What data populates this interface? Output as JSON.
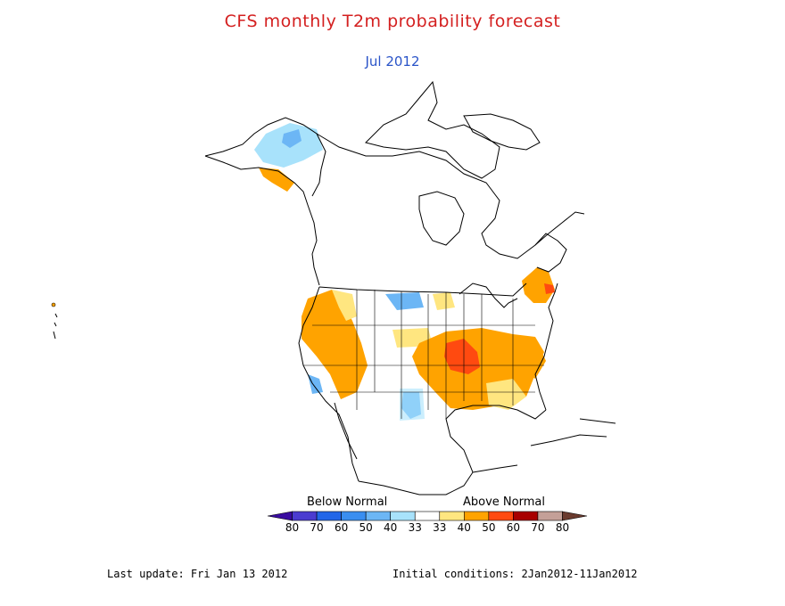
{
  "title": "CFS monthly T2m probability forecast",
  "subtitle": "Jul 2012",
  "legend": {
    "below_label": "Below Normal",
    "above_label": "Above Normal",
    "colors": [
      "#3a0ca0",
      "#4b3cd0",
      "#2266e8",
      "#3a8ef0",
      "#6cb6f5",
      "#a8e2fb",
      "#ffffff",
      "#ffe680",
      "#ffa300",
      "#ff4a10",
      "#a80000",
      "#c4a098",
      "#6a3a2e"
    ],
    "tick_labels": [
      "80",
      "70",
      "60",
      "50",
      "40",
      "33",
      "33",
      "40",
      "50",
      "60",
      "70",
      "80"
    ]
  },
  "footer": {
    "last_update": "Last update: Fri Jan 13 2012",
    "initial_conditions": "Initial conditions: 2Jan2012-11Jan2012"
  },
  "map_colors": {
    "land_outline": "#000000",
    "light_orange": "#ffe680",
    "orange": "#ffa300",
    "red_orange": "#ff4a10",
    "light_blue": "#a8e2fb",
    "blue": "#6cb6f5"
  }
}
